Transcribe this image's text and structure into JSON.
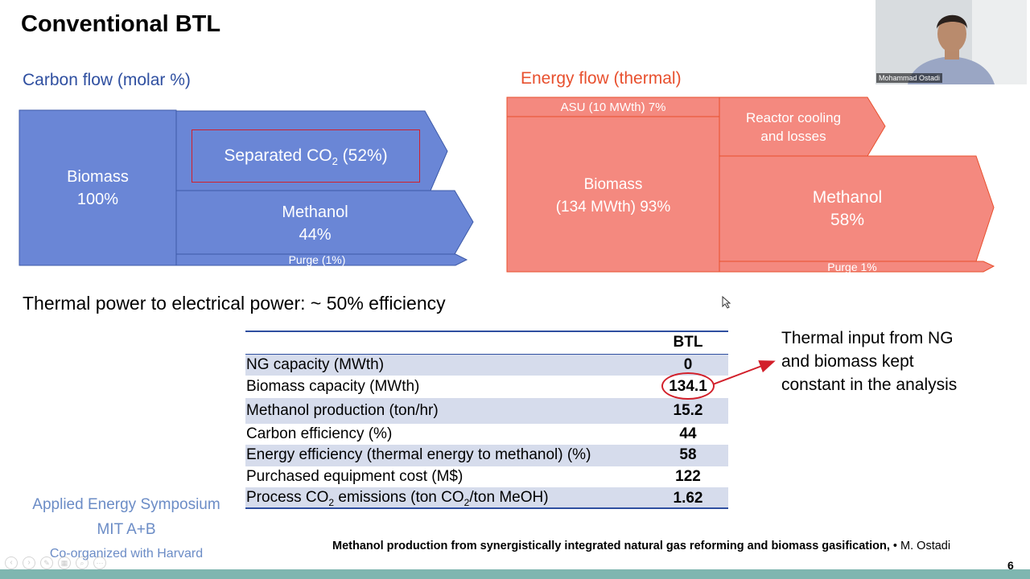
{
  "slide": {
    "title": "Conventional BTL",
    "page_number": "6"
  },
  "carbon_flow": {
    "title": "Carbon flow (molar %)",
    "biomass_label": "Biomass",
    "biomass_value": "100%",
    "separated_co2_prefix": "Separated CO",
    "separated_co2_sub": "2",
    "separated_co2_suffix": " (52%)",
    "methanol_label": "Methanol",
    "methanol_value": "44%",
    "purge": "Purge (1%)",
    "color": "#6a86d6"
  },
  "energy_flow": {
    "title": "Energy flow (thermal)",
    "asu": "ASU (10 MWth) 7%",
    "biomass_label": "Biomass",
    "biomass_value": "(134 MWth) 93%",
    "reactor_line1": "Reactor cooling",
    "reactor_line2": "and losses",
    "methanol_label": "Methanol",
    "methanol_value": "58%",
    "purge": "Purge 1%",
    "color": "#f4897f"
  },
  "thermal_note": "Thermal power to electrical power: ~ 50% efficiency",
  "table": {
    "column_header": "BTL",
    "rows": [
      {
        "label": "NG capacity (MWth)",
        "value": "0"
      },
      {
        "label": "Biomass capacity (MWth)",
        "value": "134.1"
      },
      {
        "label": "Methanol production (ton/hr)",
        "value": "15.2"
      },
      {
        "label": "Carbon efficiency (%)",
        "value": "44"
      },
      {
        "label": "Energy efficiency (thermal energy to methanol) (%)",
        "value": "58"
      },
      {
        "label": "Purchased equipment cost (M$)",
        "value": "122"
      }
    ],
    "last_row": {
      "label_a": "Process CO",
      "label_sub1": "2",
      "label_b": " emissions (ton CO",
      "label_sub2": "2",
      "label_c": "/ton MeOH)",
      "value": "1.62"
    }
  },
  "annotation": {
    "line1": "Thermal input from NG",
    "line2": "and biomass kept",
    "line3": "constant in the analysis"
  },
  "symposium": {
    "line1": "Applied Energy Symposium",
    "line2": "MIT A+B",
    "line3": "Co-organized with Harvard"
  },
  "footer": {
    "citation": "Methanol production from synergistically integrated natural gas reforming and biomass gasification,",
    "author": " • M. Ostadi"
  },
  "video": {
    "participant_name": "Mohammad Ostadi"
  }
}
